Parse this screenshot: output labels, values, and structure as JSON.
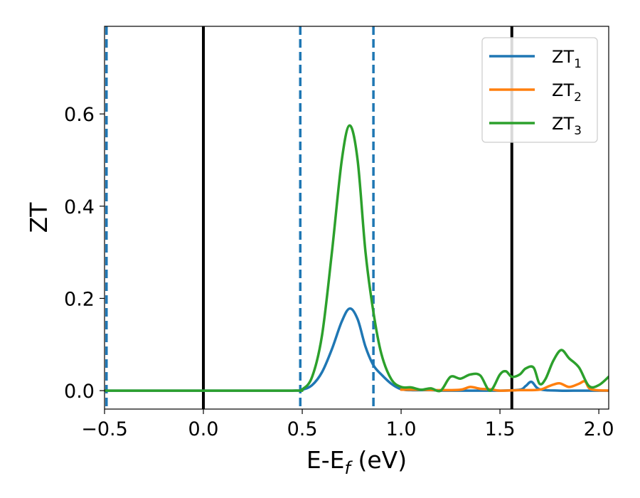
{
  "chart_data": {
    "type": "line",
    "xlabel": "E-E_f (eV)",
    "ylabel": "ZT",
    "xlim": [
      -0.5,
      2.05
    ],
    "ylim": [
      -0.04,
      0.79
    ],
    "x_ticks": [
      -0.5,
      0.0,
      0.5,
      1.0,
      1.5,
      2.0
    ],
    "x_tick_labels": [
      "−0.5",
      "0.0",
      "0.5",
      "1.0",
      "1.5",
      "2.0"
    ],
    "y_ticks": [
      0.0,
      0.2,
      0.4,
      0.6
    ],
    "y_tick_labels": [
      "0.0",
      "0.2",
      "0.4",
      "0.6"
    ],
    "grid": false,
    "legend_position": "top-right",
    "vertical_lines": [
      {
        "x": -0.49,
        "style": "dashed",
        "color": "#1f77b4"
      },
      {
        "x": 0.0,
        "style": "solid",
        "color": "#000000"
      },
      {
        "x": 0.49,
        "style": "dashed",
        "color": "#1f77b4"
      },
      {
        "x": 0.86,
        "style": "dashed",
        "color": "#1f77b4"
      },
      {
        "x": 1.56,
        "style": "solid",
        "color": "#000000"
      }
    ],
    "series": [
      {
        "name": "ZT_1",
        "label_main": "ZT",
        "label_sub": "1",
        "color": "#1f77b4",
        "x": [
          -0.5,
          0.0,
          0.45,
          0.5,
          0.55,
          0.6,
          0.65,
          0.7,
          0.74,
          0.78,
          0.82,
          0.86,
          0.9,
          0.95,
          1.0,
          1.05,
          1.1,
          1.15,
          1.2,
          1.3,
          1.4,
          1.5,
          1.6,
          1.63,
          1.66,
          1.7,
          1.8,
          1.9,
          1.95,
          2.05
        ],
        "y": [
          0.0,
          0.0,
          0.0,
          0.002,
          0.012,
          0.04,
          0.09,
          0.15,
          0.178,
          0.155,
          0.095,
          0.055,
          0.035,
          0.015,
          0.003,
          0.001,
          0.001,
          0.001,
          0.0,
          0.0,
          0.0,
          0.0,
          0.002,
          0.01,
          0.019,
          0.003,
          0.0,
          0.0,
          0.0,
          0.0
        ]
      },
      {
        "name": "ZT_2",
        "label_main": "ZT",
        "label_sub": "2",
        "color": "#ff7f0e",
        "x": [
          1.0,
          1.1,
          1.2,
          1.3,
          1.35,
          1.4,
          1.45,
          1.5,
          1.6,
          1.7,
          1.75,
          1.8,
          1.85,
          1.9,
          1.93,
          1.96,
          2.05
        ],
        "y": [
          0.002,
          0.002,
          0.001,
          0.002,
          0.008,
          0.004,
          0.003,
          0.0,
          0.001,
          0.002,
          0.01,
          0.016,
          0.008,
          0.015,
          0.02,
          0.003,
          0.0
        ]
      },
      {
        "name": "ZT_3",
        "label_main": "ZT",
        "label_sub": "3",
        "color": "#2ca02c",
        "x": [
          -0.5,
          0.0,
          0.45,
          0.5,
          0.55,
          0.6,
          0.65,
          0.7,
          0.74,
          0.78,
          0.82,
          0.86,
          0.9,
          0.95,
          1.0,
          1.05,
          1.1,
          1.15,
          1.2,
          1.25,
          1.3,
          1.35,
          1.4,
          1.45,
          1.5,
          1.53,
          1.56,
          1.6,
          1.63,
          1.67,
          1.7,
          1.73,
          1.77,
          1.81,
          1.85,
          1.9,
          1.95,
          2.0,
          2.05
        ],
        "y": [
          0.0,
          0.0,
          0.0,
          0.003,
          0.03,
          0.12,
          0.3,
          0.5,
          0.575,
          0.5,
          0.3,
          0.17,
          0.08,
          0.025,
          0.008,
          0.007,
          0.002,
          0.005,
          0.0,
          0.03,
          0.026,
          0.035,
          0.033,
          0.0,
          0.035,
          0.042,
          0.03,
          0.035,
          0.048,
          0.05,
          0.015,
          0.025,
          0.065,
          0.088,
          0.07,
          0.05,
          0.01,
          0.012,
          0.03
        ]
      }
    ]
  }
}
